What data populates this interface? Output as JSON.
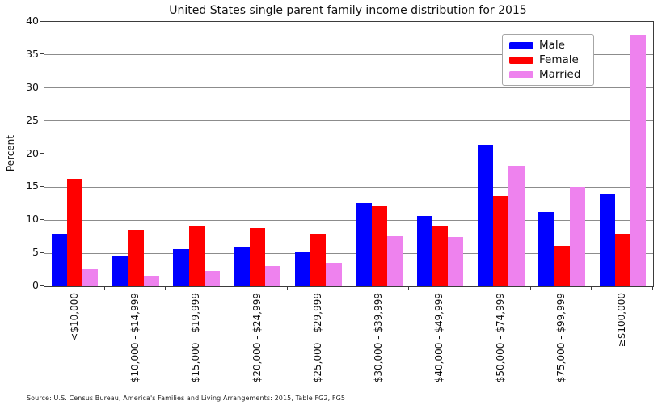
{
  "chart_data": {
    "type": "bar",
    "title": "United States single parent family income distribution for 2015",
    "xlabel": "",
    "ylabel": "Percent",
    "ylim": [
      0,
      40
    ],
    "ytick_step": 5,
    "grid": true,
    "legend_position": "upper right",
    "categories": [
      "<$10,000",
      "$10,000 - $14,999",
      "$15,000 - $19,999",
      "$20,000 - $24,999",
      "$25,000 - $29,999",
      "$30,000 - $39,999",
      "$40,000 - $49,999",
      "$50,000 - $74,999",
      "$75,000 - $99,999",
      "≥$100,000"
    ],
    "series": [
      {
        "name": "Male",
        "color": "#0000FF",
        "values": [
          8.0,
          4.6,
          5.6,
          6.0,
          5.2,
          12.6,
          10.7,
          21.4,
          11.2,
          14.0
        ]
      },
      {
        "name": "Female",
        "color": "#FF0000",
        "values": [
          16.3,
          8.6,
          9.0,
          8.8,
          7.8,
          12.1,
          9.2,
          13.7,
          6.1,
          7.8
        ]
      },
      {
        "name": "Married",
        "color": "#EE82EE",
        "values": [
          2.6,
          1.6,
          2.3,
          3.0,
          3.5,
          7.6,
          7.5,
          18.2,
          15.0,
          38.0
        ]
      }
    ]
  },
  "figure": {
    "source": "Source: U.S. Census Bureau, America's Families and Living Arrangements: 2015, Table FG2, FG5"
  },
  "colors": {
    "grid": "#8c8c8c",
    "spine": "#3b3b3b",
    "legend_border": "#a6a6a6",
    "background": "#ffffff"
  }
}
